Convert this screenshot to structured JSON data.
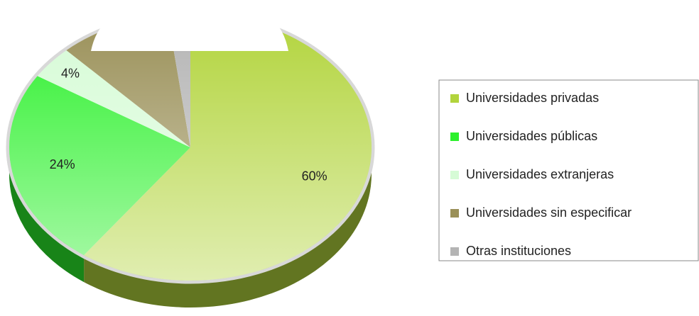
{
  "chart_data": {
    "type": "pie",
    "categories": [
      "Universidades privadas",
      "Universidades públicas",
      "Universidades extranjeras",
      "Universidades sin especificar",
      "Otras instituciones"
    ],
    "values": [
      60,
      24,
      4,
      10,
      2
    ],
    "value_labels": [
      "60%",
      "24%",
      "4%",
      null,
      null
    ],
    "colors": [
      "#b2d43c",
      "#2cf02c",
      "#d6fbd6",
      "#9a9058",
      "#b4b4b4"
    ],
    "legend": "right"
  }
}
